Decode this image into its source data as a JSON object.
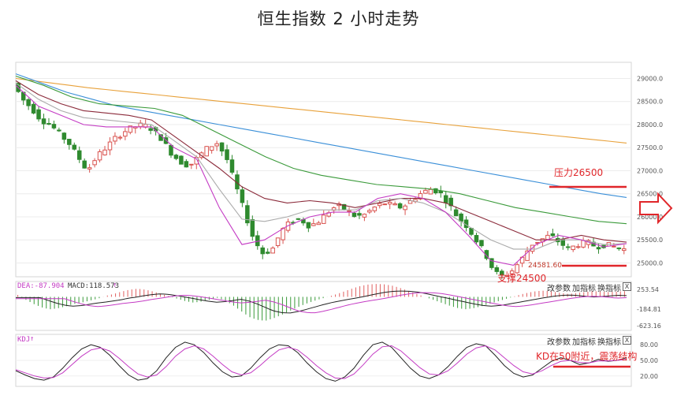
{
  "title": "恒生指数 2 小时走势",
  "chart_data": {
    "type": "candlestick",
    "main": {
      "ylim": [
        24700,
        29350
      ],
      "yticks": [
        29000,
        28500,
        28000,
        27500,
        27000,
        26500,
        26000,
        25500,
        25000
      ],
      "ytick_labels": [
        "29000.0",
        "28500.0",
        "28000.0",
        "27500.0",
        "27000.0",
        "26500.0",
        "26000.0",
        "25500.0",
        "25000.0"
      ],
      "close_path": [
        28900,
        28550,
        28350,
        28100,
        28000,
        27800,
        27600,
        27300,
        27000,
        27300,
        27500,
        27700,
        27850,
        27950,
        28000,
        27900,
        27700,
        27400,
        27200,
        27100,
        27300,
        27500,
        27600,
        27300,
        26700,
        26100,
        25500,
        25200,
        25300,
        25700,
        25900,
        25950,
        25800,
        25900,
        26100,
        26250,
        26150,
        26000,
        26050,
        26200,
        26300,
        26250,
        26200,
        26350,
        26500,
        26600,
        26550,
        26300,
        26000,
        25800,
        25500,
        25200,
        24800,
        24700,
        24850,
        25100,
        25400,
        25500,
        25600,
        25450,
        25300,
        25400,
        25450,
        25350,
        25400,
        25350,
        25300
      ]
    },
    "ma_lines": [
      {
        "color": "#e8a13a",
        "values": [
          29000,
          28950,
          28900,
          28850,
          28800,
          28760,
          28720,
          28680,
          28640,
          28600,
          28560,
          28520,
          28480,
          28440,
          28400,
          28360,
          28320,
          28280,
          28240,
          28200,
          28160,
          28120,
          28080,
          28040,
          28000,
          27960,
          27920,
          27880,
          27840,
          27800,
          27760,
          27720,
          27680,
          27640,
          27600
        ]
      },
      {
        "color": "#3a8fd8",
        "values": [
          29100,
          28900,
          28700,
          28550,
          28400,
          28300,
          28200,
          28100,
          28000,
          27900,
          27800,
          27700,
          27600,
          27500,
          27400,
          27300,
          27200,
          27100,
          27000,
          26900,
          26800,
          26700,
          26600,
          26500,
          26420
        ]
      },
      {
        "color": "#3a9a3a",
        "values": [
          29050,
          28850,
          28600,
          28450,
          28400,
          28350,
          28200,
          27900,
          27600,
          27300,
          27050,
          26900,
          26800,
          26700,
          26650,
          26600,
          26500,
          26350,
          26200,
          26100,
          26000,
          25900,
          25850
        ]
      },
      {
        "color": "#8b2a3a",
        "values": [
          28950,
          28650,
          28450,
          28300,
          28250,
          28200,
          28100,
          27750,
          27400,
          27050,
          26650,
          26400,
          26300,
          26350,
          26300,
          26200,
          26300,
          26400,
          26400,
          26300,
          26100,
          25900,
          25700,
          25500,
          25500,
          25600,
          25500,
          25450
        ]
      },
      {
        "color": "#aaaaaa",
        "values": [
          28900,
          28550,
          28300,
          28150,
          28100,
          28050,
          28000,
          27650,
          27300,
          26600,
          25950,
          25900,
          26000,
          26150,
          26150,
          26150,
          26350,
          26400,
          26300,
          26100,
          25800,
          25500,
          25300,
          25300,
          25500,
          25500,
          25400,
          25420
        ]
      },
      {
        "color": "#c43bc4",
        "values": [
          28850,
          28400,
          28200,
          28000,
          27950,
          27950,
          27950,
          27500,
          27250,
          26200,
          25400,
          25500,
          25800,
          26000,
          26100,
          26100,
          26400,
          26500,
          26400,
          26100,
          25600,
          25050,
          24950,
          25400,
          25600,
          25500,
          25350,
          25420
        ]
      }
    ],
    "annotations": [
      {
        "text": "压力26500",
        "value": 26500
      },
      {
        "text": "24581.60",
        "value": 24581.6
      },
      {
        "text": "支撑24500",
        "value": 24500
      }
    ],
    "macd": {
      "label_dea": "DEA:-87.904",
      "label_macd": "MACD:118.573",
      "yticks_labels": [
        "253.54",
        "-184.81",
        "-623.16"
      ],
      "ylim": [
        -700,
        320
      ],
      "hist": [
        40,
        -60,
        -150,
        -220,
        -260,
        -240,
        -200,
        -150,
        -120,
        -80,
        -40,
        20,
        60,
        110,
        150,
        170,
        150,
        110,
        60,
        10,
        -40,
        -90,
        -120,
        -100,
        -60,
        -20,
        -80,
        -180,
        -300,
        -420,
        -480,
        -500,
        -450,
        -380,
        -300,
        -220,
        -150,
        -90,
        -40,
        10,
        60,
        120,
        180,
        230,
        260,
        270,
        260,
        230,
        180,
        120,
        60,
        0,
        -60,
        -120,
        -180,
        -230,
        -260,
        -240,
        -200,
        -150,
        -100,
        -50,
        0,
        50,
        90,
        120,
        130,
        110,
        80,
        60,
        80,
        100,
        120,
        110,
        100,
        110,
        118
      ]
    },
    "kdj": {
      "label": "KDJ",
      "yticks_labels": [
        "80.00",
        "50.00",
        "20.00"
      ],
      "ylim": [
        0,
        100
      ],
      "k": [
        30,
        22,
        15,
        12,
        18,
        35,
        55,
        72,
        80,
        75,
        60,
        40,
        22,
        12,
        15,
        30,
        55,
        75,
        85,
        80,
        65,
        45,
        28,
        18,
        20,
        35,
        55,
        72,
        80,
        78,
        65,
        45,
        28,
        15,
        10,
        18,
        35,
        60,
        80,
        85,
        75,
        55,
        35,
        20,
        15,
        22,
        38,
        58,
        75,
        82,
        78,
        60,
        40,
        25,
        18,
        22,
        35,
        48,
        55,
        50,
        42,
        45,
        52,
        48,
        50,
        55
      ],
      "d": [
        32,
        26,
        20,
        16,
        17,
        26,
        42,
        58,
        70,
        74,
        68,
        54,
        38,
        24,
        18,
        22,
        38,
        58,
        72,
        78,
        72,
        58,
        42,
        28,
        22,
        26,
        40,
        56,
        70,
        75,
        70,
        56,
        40,
        26,
        16,
        15,
        24,
        42,
        62,
        76,
        78,
        68,
        52,
        36,
        24,
        22,
        30,
        45,
        62,
        74,
        78,
        70,
        55,
        40,
        28,
        24,
        30,
        40,
        48,
        50,
        46,
        45,
        49,
        49,
        50,
        52
      ]
    },
    "kd_annotation": "KD在50附近，震荡结构"
  },
  "panel_controls": {
    "change_params": "改参数",
    "add_indicator": "加指标",
    "switch_indicator": "换指标",
    "close": "X"
  }
}
